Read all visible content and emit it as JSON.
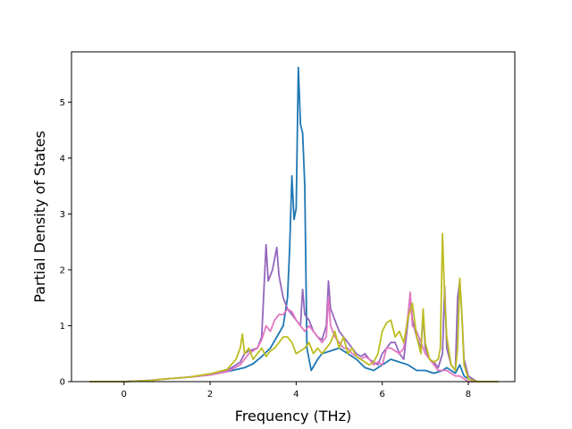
{
  "chart_data": {
    "type": "line",
    "title": "",
    "xlabel": "Frequency (THz)",
    "ylabel": "Partial Density of States",
    "xlim": [
      -1.22,
      9.08
    ],
    "ylim": [
      0,
      5.9
    ],
    "xticks": [
      0,
      2,
      4,
      6,
      8
    ],
    "yticks": [
      0,
      1,
      2,
      3,
      4,
      5
    ],
    "grid": false,
    "legend": "none",
    "series": [
      {
        "color": "#1f77b4",
        "x": [
          -0.8,
          0.0,
          0.6,
          1.0,
          1.5,
          2.0,
          2.4,
          2.8,
          3.0,
          3.2,
          3.4,
          3.55,
          3.7,
          3.8,
          3.85,
          3.9,
          3.95,
          4.0,
          4.05,
          4.1,
          4.15,
          4.2,
          4.25,
          4.35,
          4.5,
          4.6,
          4.8,
          5.0,
          5.2,
          5.4,
          5.6,
          5.8,
          6.0,
          6.2,
          6.4,
          6.6,
          6.8,
          7.0,
          7.2,
          7.4,
          7.5,
          7.6,
          7.7,
          7.8,
          7.9,
          8.0,
          8.2,
          8.7
        ],
        "y": [
          0,
          0,
          0.02,
          0.05,
          0.08,
          0.12,
          0.18,
          0.25,
          0.32,
          0.45,
          0.6,
          0.8,
          1.0,
          1.5,
          2.4,
          3.68,
          2.9,
          3.1,
          5.62,
          4.6,
          4.45,
          3.5,
          0.6,
          0.2,
          0.4,
          0.5,
          0.55,
          0.6,
          0.5,
          0.4,
          0.25,
          0.2,
          0.3,
          0.4,
          0.35,
          0.3,
          0.2,
          0.2,
          0.15,
          0.2,
          0.25,
          0.2,
          0.15,
          0.3,
          0.1,
          0.05,
          0,
          0
        ]
      },
      {
        "color": "#9467bd",
        "x": [
          -0.8,
          0.0,
          0.6,
          1.0,
          1.5,
          2.0,
          2.4,
          2.7,
          2.8,
          2.9,
          3.1,
          3.2,
          3.3,
          3.35,
          3.45,
          3.55,
          3.6,
          3.7,
          3.8,
          3.9,
          4.0,
          4.1,
          4.15,
          4.2,
          4.3,
          4.4,
          4.5,
          4.6,
          4.7,
          4.75,
          4.8,
          4.9,
          5.0,
          5.1,
          5.2,
          5.3,
          5.4,
          5.5,
          5.6,
          5.7,
          5.8,
          5.9,
          6.0,
          6.1,
          6.2,
          6.3,
          6.4,
          6.5,
          6.6,
          6.65,
          6.7,
          6.8,
          6.9,
          6.95,
          7.0,
          7.1,
          7.2,
          7.3,
          7.4,
          7.45,
          7.5,
          7.6,
          7.7,
          7.75,
          7.8,
          7.85,
          7.9,
          8.0,
          8.2,
          8.7
        ],
        "y": [
          0,
          0,
          0.02,
          0.05,
          0.08,
          0.12,
          0.2,
          0.35,
          0.5,
          0.55,
          0.6,
          0.8,
          2.45,
          1.8,
          2.0,
          2.4,
          1.9,
          1.5,
          1.3,
          1.2,
          1.1,
          1.0,
          1.65,
          1.2,
          1.1,
          0.9,
          0.8,
          0.75,
          1.0,
          1.8,
          1.3,
          1.1,
          0.9,
          0.8,
          0.7,
          0.6,
          0.5,
          0.45,
          0.5,
          0.4,
          0.35,
          0.3,
          0.5,
          0.6,
          0.7,
          0.7,
          0.5,
          0.4,
          1.1,
          1.55,
          1.1,
          0.8,
          0.6,
          1.2,
          0.6,
          0.4,
          0.35,
          0.25,
          0.5,
          1.7,
          0.6,
          0.3,
          0.2,
          1.5,
          1.8,
          1.2,
          0.4,
          0.1,
          0,
          0
        ]
      },
      {
        "color": "#e377c2",
        "x": [
          -0.8,
          0.0,
          0.6,
          1.0,
          1.5,
          2.0,
          2.4,
          2.7,
          2.9,
          3.1,
          3.2,
          3.3,
          3.4,
          3.5,
          3.6,
          3.7,
          3.8,
          3.9,
          4.0,
          4.1,
          4.2,
          4.3,
          4.4,
          4.5,
          4.6,
          4.7,
          4.75,
          4.8,
          4.9,
          5.0,
          5.1,
          5.2,
          5.3,
          5.4,
          5.5,
          5.6,
          5.7,
          5.8,
          5.9,
          6.0,
          6.1,
          6.2,
          6.3,
          6.4,
          6.5,
          6.6,
          6.65,
          6.7,
          6.8,
          6.9,
          7.0,
          7.1,
          7.2,
          7.3,
          7.4,
          7.5,
          7.6,
          7.7,
          7.8,
          7.9,
          8.0,
          8.2,
          8.7
        ],
        "y": [
          0,
          0,
          0.02,
          0.05,
          0.08,
          0.12,
          0.18,
          0.3,
          0.5,
          0.6,
          0.75,
          1.0,
          0.9,
          1.1,
          1.2,
          1.2,
          1.3,
          1.25,
          1.1,
          1.0,
          0.9,
          1.0,
          0.9,
          0.8,
          0.7,
          0.8,
          1.5,
          1.0,
          0.8,
          0.7,
          0.6,
          0.6,
          0.5,
          0.45,
          0.4,
          0.45,
          0.4,
          0.3,
          0.35,
          0.3,
          0.6,
          0.6,
          0.55,
          0.5,
          0.6,
          1.2,
          1.6,
          1.0,
          0.9,
          0.7,
          0.5,
          0.4,
          0.3,
          0.2,
          0.2,
          0.2,
          0.15,
          0.1,
          0.1,
          0.05,
          0,
          0,
          0
        ]
      },
      {
        "color": "#bcbd22",
        "x": [
          -0.8,
          0.0,
          0.6,
          1.0,
          1.5,
          2.0,
          2.4,
          2.6,
          2.7,
          2.75,
          2.8,
          2.9,
          3.0,
          3.1,
          3.2,
          3.3,
          3.4,
          3.5,
          3.6,
          3.7,
          3.8,
          3.9,
          4.0,
          4.1,
          4.2,
          4.3,
          4.4,
          4.5,
          4.6,
          4.7,
          4.8,
          4.9,
          5.0,
          5.1,
          5.2,
          5.3,
          5.4,
          5.5,
          5.6,
          5.7,
          5.8,
          5.9,
          6.0,
          6.1,
          6.2,
          6.3,
          6.4,
          6.5,
          6.6,
          6.7,
          6.8,
          6.9,
          6.95,
          7.0,
          7.1,
          7.2,
          7.3,
          7.35,
          7.4,
          7.45,
          7.5,
          7.6,
          7.7,
          7.75,
          7.8,
          7.85,
          7.9,
          8.0,
          8.2,
          8.7
        ],
        "y": [
          0,
          0,
          0.02,
          0.05,
          0.08,
          0.14,
          0.22,
          0.4,
          0.6,
          0.85,
          0.5,
          0.6,
          0.4,
          0.5,
          0.6,
          0.45,
          0.55,
          0.6,
          0.7,
          0.8,
          0.8,
          0.7,
          0.5,
          0.55,
          0.6,
          0.7,
          0.5,
          0.6,
          0.5,
          0.6,
          0.7,
          0.9,
          0.6,
          0.8,
          0.5,
          0.6,
          0.45,
          0.4,
          0.35,
          0.3,
          0.35,
          0.5,
          0.9,
          1.05,
          1.1,
          0.8,
          0.9,
          0.7,
          1.15,
          1.4,
          0.8,
          0.5,
          1.3,
          0.7,
          0.4,
          0.35,
          0.4,
          0.6,
          2.65,
          1.5,
          0.8,
          0.3,
          0.2,
          0.6,
          1.85,
          1.2,
          0.3,
          0.05,
          0,
          0
        ]
      }
    ]
  }
}
